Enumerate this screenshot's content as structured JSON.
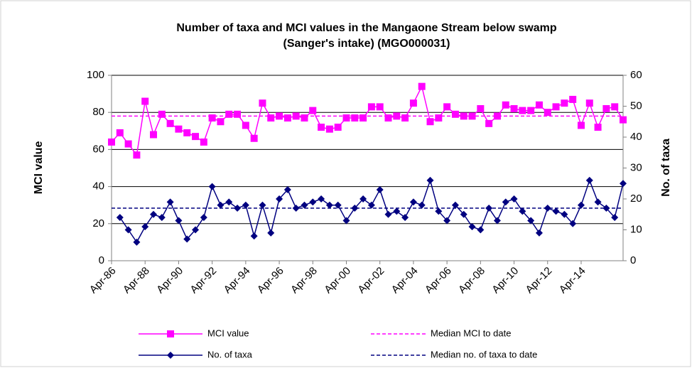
{
  "chart_data": {
    "type": "line",
    "title": [
      "Number of taxa and MCI values in the Mangaone Stream below swamp",
      "(Sanger's intake)  (MGO000031)"
    ],
    "y_label": "MCI value",
    "y2_label": "No. of taxa",
    "categories": [
      "Apr-86",
      null,
      null,
      null,
      "Apr-88",
      null,
      null,
      null,
      "Apr-90",
      null,
      null,
      null,
      "Apr-92",
      null,
      null,
      null,
      "Apr-94",
      null,
      null,
      null,
      "Apr-96",
      null,
      null,
      null,
      "Apr-98",
      null,
      null,
      null,
      "Apr-00",
      null,
      null,
      null,
      "Apr-02",
      null,
      null,
      null,
      "Apr-04",
      null,
      null,
      null,
      "Apr-06",
      null,
      null,
      null,
      "Apr-08",
      null,
      null,
      null,
      "Apr-10",
      null,
      null,
      null,
      "Apr-12",
      null,
      null,
      null,
      "Apr-14",
      null,
      null,
      null,
      null,
      null
    ],
    "series": [
      {
        "name": "MCI value",
        "color": "#ff00ff",
        "marker": "square",
        "axis": "y",
        "values": [
          64,
          69,
          63,
          57,
          86,
          68,
          79,
          74,
          71,
          69,
          67,
          64,
          77,
          75,
          79,
          79,
          73,
          66,
          85,
          77,
          78,
          77,
          78,
          77,
          81,
          72,
          71,
          72,
          77,
          77,
          77,
          83,
          83,
          77,
          78,
          77,
          85,
          94,
          75,
          77,
          83,
          79,
          78,
          78,
          82,
          74,
          78,
          84,
          82,
          81,
          81,
          84,
          80,
          83,
          85,
          87,
          73,
          85,
          72,
          82,
          83,
          76
        ]
      },
      {
        "name": "No. of taxa",
        "color": "#000080",
        "marker": "diamond",
        "axis": "y2",
        "values": [
          null,
          14,
          10,
          6,
          11,
          15,
          14,
          19,
          13,
          7,
          10,
          14,
          24,
          18,
          19,
          17,
          18,
          8,
          18,
          9,
          20,
          23,
          17,
          18,
          19,
          20,
          18,
          18,
          13,
          17,
          20,
          18,
          23,
          15,
          16,
          14,
          19,
          18,
          26,
          16,
          13,
          18,
          15,
          11,
          10,
          17,
          13,
          19,
          20,
          16,
          13,
          9,
          17,
          16,
          15,
          12,
          18,
          26,
          19,
          17,
          14,
          25
        ]
      }
    ],
    "reference_lines": [
      {
        "name": "Median MCI to date",
        "color": "#ff00ff",
        "value": 78,
        "axis": "y"
      },
      {
        "name": "Median no. of taxa to date",
        "color": "#000080",
        "value": 17,
        "axis": "y2"
      }
    ],
    "ylim": [
      0,
      100
    ],
    "yticks": [
      0,
      20,
      40,
      60,
      80,
      100
    ],
    "y2lim": [
      0,
      60
    ],
    "y2ticks": [
      0,
      10,
      20,
      30,
      40,
      50,
      60
    ],
    "grid": true
  }
}
